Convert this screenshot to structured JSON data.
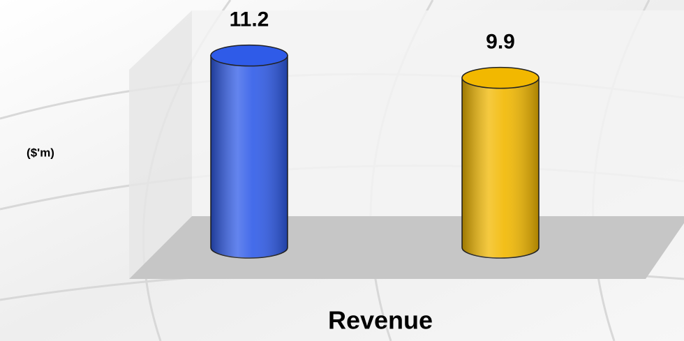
{
  "chart_data": {
    "type": "bar",
    "ylabel": "($'m)",
    "categories": [
      "Revenue"
    ],
    "series": [
      {
        "color": "#2f5be8",
        "values": [
          11.2
        ]
      },
      {
        "color": "#f2b800",
        "values": [
          9.9
        ]
      }
    ],
    "ylim": [
      0,
      12
    ]
  }
}
